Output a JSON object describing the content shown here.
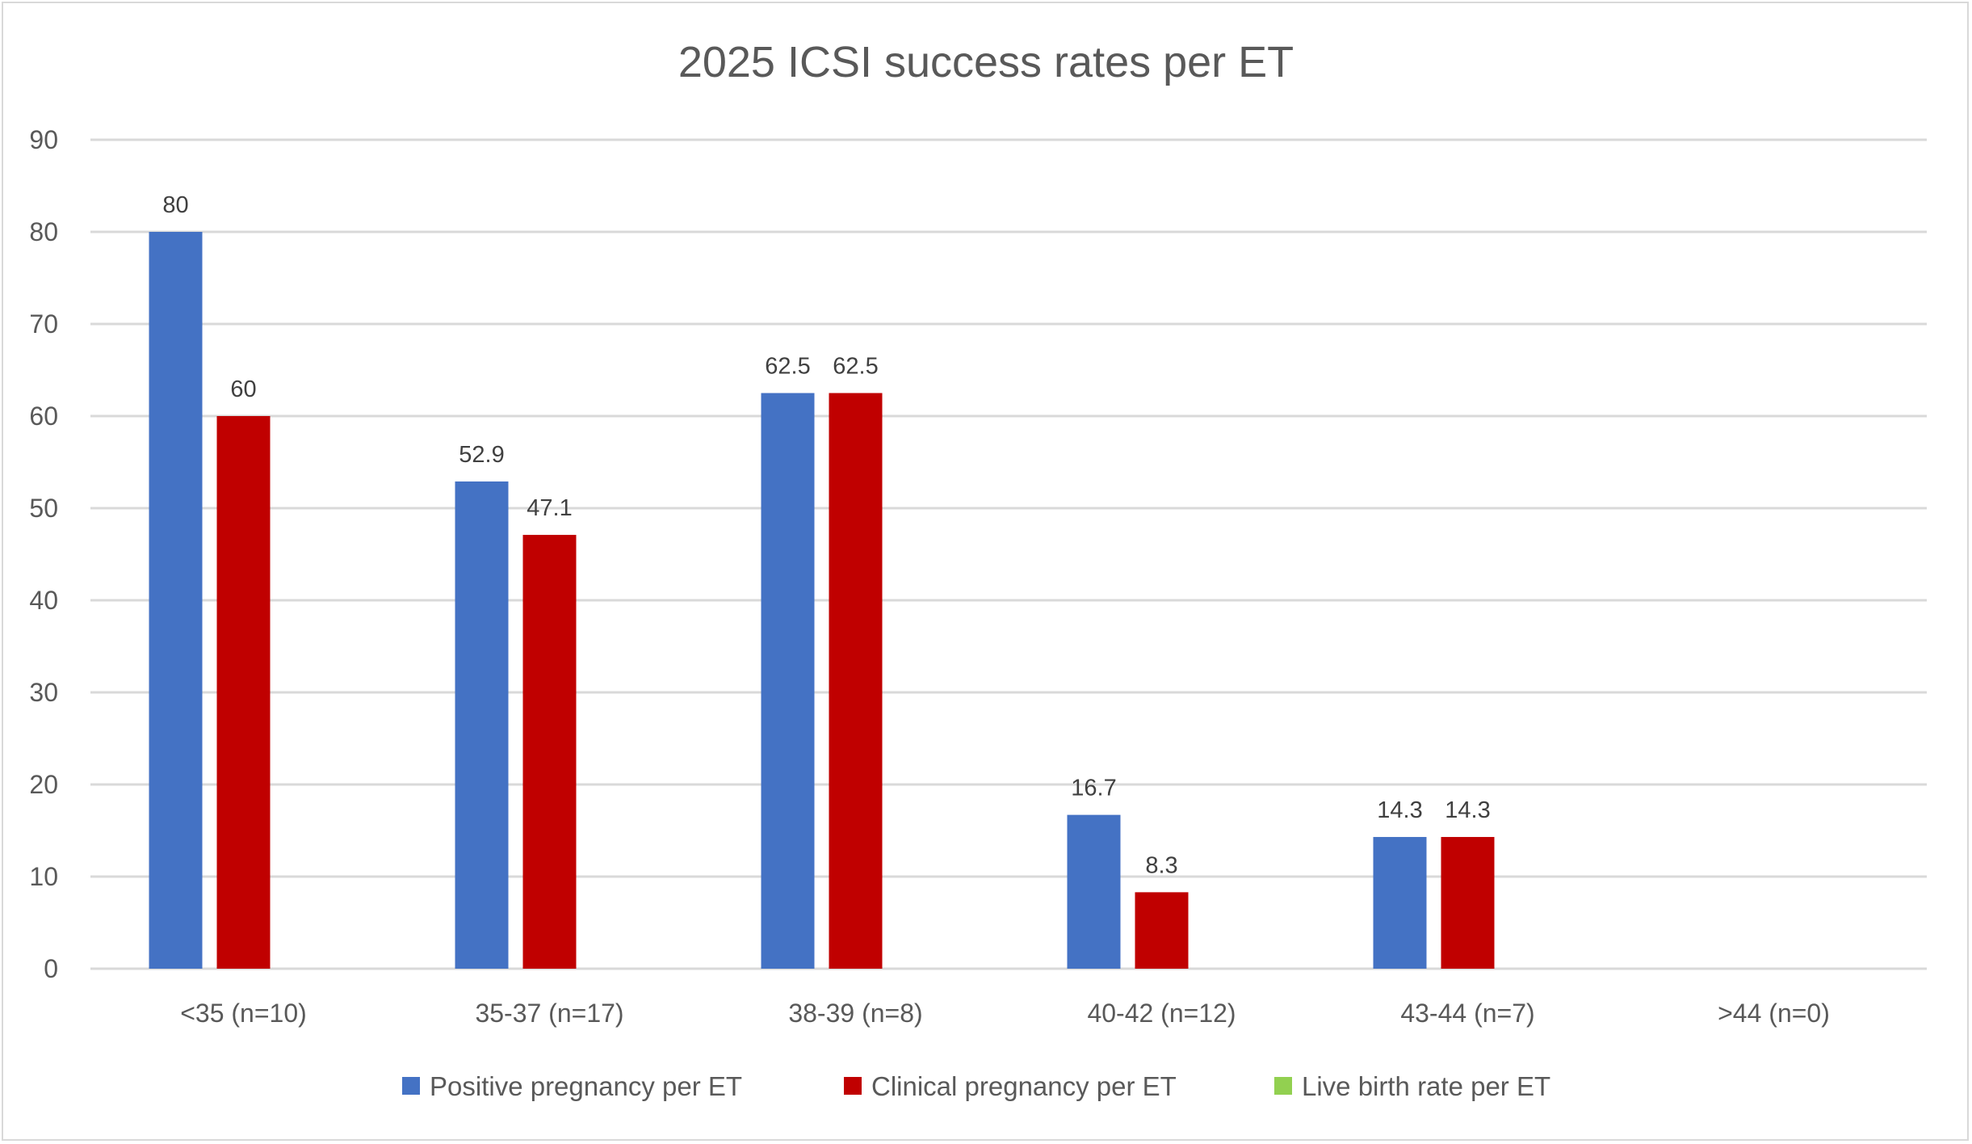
{
  "chart_data": {
    "type": "bar",
    "title": "2025 ICSI success rates per ET",
    "xlabel": "",
    "ylabel": "",
    "ylim": [
      0,
      90
    ],
    "yticks": [
      0,
      10,
      20,
      30,
      40,
      50,
      60,
      70,
      80,
      90
    ],
    "grid": true,
    "legend_position": "bottom",
    "categories": [
      "<35 (n=10)",
      "35-37 (n=17)",
      "38-39 (n=8)",
      "40-42 (n=12)",
      "43-44 (n=7)",
      ">44 (n=0)"
    ],
    "series": [
      {
        "name": "Positive pregnancy per ET",
        "color": "#4472C4",
        "values": [
          80,
          52.9,
          62.5,
          16.7,
          14.3,
          null
        ]
      },
      {
        "name": "Clinical pregnancy per ET",
        "color": "#C00000",
        "values": [
          60,
          47.1,
          62.5,
          8.3,
          14.3,
          null
        ]
      },
      {
        "name": "Live birth rate per ET",
        "color": "#92D050",
        "values": [
          null,
          null,
          null,
          null,
          null,
          null
        ]
      }
    ]
  }
}
